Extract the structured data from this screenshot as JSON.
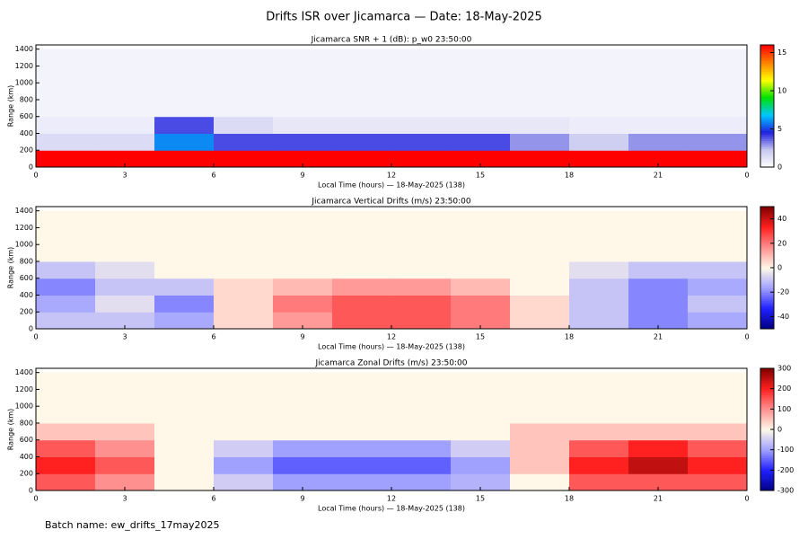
{
  "title": "Drifts ISR over Jicamarca — Date: 18-May-2025",
  "footer": "Batch name: ew_drifts_17may2025",
  "chart_data": [
    {
      "type": "heatmap",
      "title": "Jicamarca SNR + 1 (dB): p_w0 23:50:00",
      "xlabel": "Local Time (hours) — 18-May-2025 (138)",
      "ylabel": "Range (km)",
      "xlim": [
        0,
        24
      ],
      "xticks": [
        0,
        3,
        6,
        9,
        12,
        15,
        18,
        21,
        {
          "value": 24,
          "label": "0"
        }
      ],
      "ylim": [
        0,
        1450
      ],
      "yticks": [
        0,
        200,
        400,
        600,
        800,
        1000,
        1200,
        1400
      ],
      "xbins": [
        0,
        2,
        4,
        6,
        8,
        10,
        12,
        14,
        16,
        18,
        20,
        22,
        24
      ],
      "ybins": [
        0,
        200,
        400,
        600,
        800,
        1000,
        1200,
        1400
      ],
      "zlim": [
        0,
        16
      ],
      "zticks": [
        0,
        5,
        10,
        15
      ],
      "colorscale": [
        "#ffffff",
        "#c8c8f0",
        "#2020e0",
        "#00c8ff",
        "#00e000",
        "#ffff00",
        "#ff8000",
        "#ff0000"
      ],
      "values": [
        [
          16,
          16,
          16,
          16,
          16,
          16,
          16,
          16,
          16,
          16,
          16,
          16
        ],
        [
          1.5,
          1.5,
          6,
          4,
          4,
          4,
          4,
          4,
          3,
          2,
          3,
          3
        ],
        [
          0.8,
          0.8,
          4,
          1.5,
          1,
          1,
          1,
          1,
          1,
          0.8,
          0.8,
          0.8
        ],
        [
          0.5,
          0.5,
          0.5,
          0.5,
          0.5,
          0.5,
          0.5,
          0.5,
          0.5,
          0.5,
          0.5,
          0.5
        ],
        [
          0.5,
          0.5,
          0.5,
          0.5,
          0.5,
          0.5,
          0.5,
          0.5,
          0.5,
          0.5,
          0.5,
          0.5
        ],
        [
          0.5,
          0.5,
          0.5,
          0.5,
          0.5,
          0.5,
          0.5,
          0.5,
          0.5,
          0.5,
          0.5,
          0.5
        ],
        [
          0.5,
          0.5,
          0.5,
          0.5,
          0.5,
          0.5,
          0.5,
          0.5,
          0.5,
          0.5,
          0.5,
          0.5
        ]
      ]
    },
    {
      "type": "heatmap",
      "title": "Jicamarca Vertical Drifts (m/s) 23:50:00",
      "xlabel": "Local Time (hours) — 18-May-2025 (138)",
      "ylabel": "Range (km)",
      "xlim": [
        0,
        24
      ],
      "xticks": [
        0,
        3,
        6,
        9,
        12,
        15,
        18,
        21,
        {
          "value": 24,
          "label": "0"
        }
      ],
      "ylim": [
        0,
        1450
      ],
      "yticks": [
        0,
        200,
        400,
        600,
        800,
        1000,
        1200,
        1400
      ],
      "xbins": [
        0,
        2,
        4,
        6,
        8,
        10,
        12,
        14,
        16,
        18,
        20,
        22,
        24
      ],
      "ybins": [
        0,
        200,
        400,
        600,
        800,
        1000,
        1200,
        1400
      ],
      "zlim": [
        -50,
        50
      ],
      "zticks": [
        -40,
        -20,
        0,
        20,
        40
      ],
      "colorscale": [
        "#000080",
        "#2020ff",
        "#a0a0ff",
        "#fff8e8",
        "#ff9090",
        "#ff2020",
        "#800000"
      ],
      "values": [
        [
          -10,
          -10,
          -15,
          5,
          15,
          25,
          25,
          20,
          5,
          -10,
          -20,
          -15
        ],
        [
          -15,
          -5,
          -20,
          5,
          20,
          25,
          25,
          20,
          5,
          -10,
          -20,
          -10
        ],
        [
          -20,
          -10,
          -10,
          5,
          10,
          15,
          15,
          10,
          0,
          -10,
          -20,
          -15
        ],
        [
          -10,
          -5,
          0,
          0,
          0,
          0,
          0,
          0,
          0,
          -5,
          -10,
          -10
        ],
        [
          0,
          0,
          0,
          0,
          0,
          0,
          0,
          0,
          0,
          0,
          0,
          0
        ],
        [
          0,
          0,
          0,
          0,
          0,
          0,
          0,
          0,
          0,
          0,
          0,
          0
        ],
        [
          0,
          0,
          0,
          0,
          0,
          0,
          0,
          0,
          0,
          0,
          0,
          0
        ]
      ]
    },
    {
      "type": "heatmap",
      "title": "Jicamarca Zonal Drifts (m/s) 23:50:00",
      "xlabel": "Local Time (hours) — 18-May-2025 (138)",
      "ylabel": "Range (km)",
      "xlim": [
        0,
        24
      ],
      "xticks": [
        0,
        3,
        6,
        9,
        12,
        15,
        18,
        21,
        {
          "value": 24,
          "label": "0"
        }
      ],
      "ylim": [
        0,
        1450
      ],
      "yticks": [
        0,
        200,
        400,
        600,
        800,
        1000,
        1200,
        1400
      ],
      "xbins": [
        0,
        2,
        4,
        6,
        8,
        10,
        12,
        14,
        16,
        18,
        20,
        22,
        24
      ],
      "ybins": [
        0,
        200,
        400,
        600,
        800,
        1000,
        1200,
        1400
      ],
      "zlim": [
        -300,
        300
      ],
      "zticks": [
        -300,
        -200,
        -100,
        0,
        100,
        200,
        300
      ],
      "colorscale": [
        "#000080",
        "#2020ff",
        "#a0a0ff",
        "#fff8e8",
        "#ff9090",
        "#ff2020",
        "#800000"
      ],
      "values": [
        [
          150,
          100,
          0,
          -50,
          -100,
          -100,
          -100,
          -80,
          0,
          150,
          150,
          150
        ],
        [
          200,
          150,
          0,
          -100,
          -150,
          -150,
          -150,
          -100,
          50,
          200,
          250,
          200
        ],
        [
          150,
          100,
          0,
          -50,
          -100,
          -100,
          -100,
          -50,
          50,
          150,
          200,
          150
        ],
        [
          50,
          50,
          0,
          0,
          0,
          0,
          0,
          0,
          50,
          50,
          50,
          50
        ],
        [
          0,
          0,
          0,
          0,
          0,
          0,
          0,
          0,
          0,
          0,
          0,
          0
        ],
        [
          0,
          0,
          0,
          0,
          0,
          0,
          0,
          0,
          0,
          0,
          0,
          0
        ],
        [
          0,
          0,
          0,
          0,
          0,
          0,
          0,
          0,
          0,
          0,
          0,
          0
        ]
      ]
    }
  ]
}
